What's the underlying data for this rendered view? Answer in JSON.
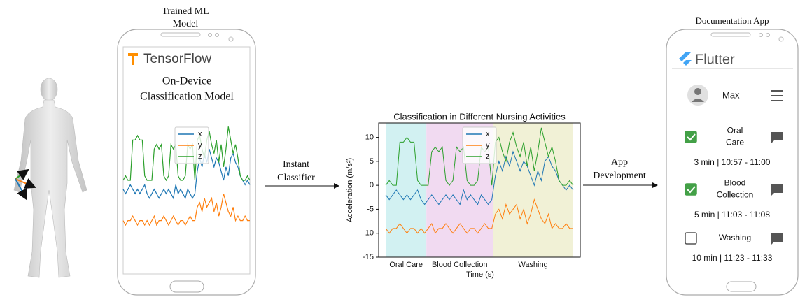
{
  "left_phone": {
    "caption": [
      "Trained ML",
      "Model"
    ],
    "brand": "TensorFlow",
    "heading": [
      "On-Device",
      "Classification Model"
    ],
    "legend": [
      "x",
      "y",
      "z"
    ]
  },
  "arrow_1": [
    "Instant",
    "Classifier"
  ],
  "chart": {
    "type": "line",
    "title": "Classification in Different Nursing Activities",
    "xlabel": "Time (s)",
    "ylabel": "Acceleration (m/s²)",
    "ylim": [
      -15,
      13
    ],
    "yticks": [
      -15,
      -10,
      -5,
      0,
      5,
      10
    ],
    "xlim": [
      -2,
      55
    ],
    "series": [
      {
        "name": "x",
        "color": "#1f77b4",
        "values": [
          -2,
          -3,
          -2,
          -1,
          -2,
          -3,
          -2,
          -3,
          -2,
          -1,
          -3,
          -4,
          -3,
          -2,
          -3,
          -4,
          -3,
          -2,
          -3,
          -2,
          -3,
          -4,
          -1,
          -3,
          -2,
          -3,
          -4,
          -2,
          -3,
          -4,
          -3,
          2,
          5,
          3,
          6,
          4,
          7,
          5,
          3,
          5,
          4,
          2,
          0,
          3,
          1,
          5,
          6,
          4,
          3,
          1,
          0,
          -1,
          0,
          -1
        ]
      },
      {
        "name": "y",
        "color": "#ff7f0e",
        "values": [
          -9,
          -10,
          -9,
          -9,
          -8,
          -9,
          -10,
          -9,
          -9,
          -10,
          -9,
          -10,
          -9,
          -8,
          -10,
          -9,
          -9,
          -8,
          -9,
          -10,
          -9,
          -8,
          -9,
          -10,
          -9,
          -9,
          -10,
          -9,
          -8,
          -9,
          -9,
          -6,
          -5,
          -7,
          -4,
          -6,
          -5,
          -4,
          -7,
          -5,
          -8,
          -6,
          -3,
          -5,
          -7,
          -8,
          -6,
          -9,
          -8,
          -9,
          -9,
          -8,
          -9,
          -9
        ]
      },
      {
        "name": "z",
        "color": "#2ca02c",
        "values": [
          0,
          1,
          0,
          0,
          9,
          9,
          10,
          9,
          9,
          1,
          0,
          0,
          0,
          7,
          8,
          7,
          8,
          1,
          0,
          1,
          8,
          7,
          8,
          1,
          0,
          0,
          1,
          8,
          7,
          8,
          0,
          9,
          10,
          7,
          5,
          9,
          11,
          8,
          6,
          9,
          4,
          8,
          3,
          7,
          12,
          9,
          6,
          8,
          5,
          1,
          0,
          0,
          1,
          0
        ]
      }
    ],
    "regions": [
      {
        "label": "Oral Care",
        "start": 0,
        "end": 11.5,
        "color": "#d2f1f2"
      },
      {
        "label": "Blood Collection",
        "start": 11.5,
        "end": 30.3,
        "color": "#f1daf1"
      },
      {
        "label": "Washing",
        "start": 30.3,
        "end": 53,
        "color": "#f1f1d6"
      }
    ]
  },
  "arrow_2": [
    "App",
    "Development"
  ],
  "right_phone": {
    "caption": "Documentation App",
    "brand": "Flutter",
    "user": "Max",
    "tasks": [
      {
        "label": [
          "Oral",
          "Care"
        ],
        "checked": true,
        "time": "3 min | 10:57 - 11:00"
      },
      {
        "label": [
          "Blood",
          "Collection"
        ],
        "checked": true,
        "time": "5 min | 11:03 - 11:08"
      },
      {
        "label": [
          "Washing"
        ],
        "checked": false,
        "time": "10 min | 11:23 - 11:33"
      }
    ]
  }
}
